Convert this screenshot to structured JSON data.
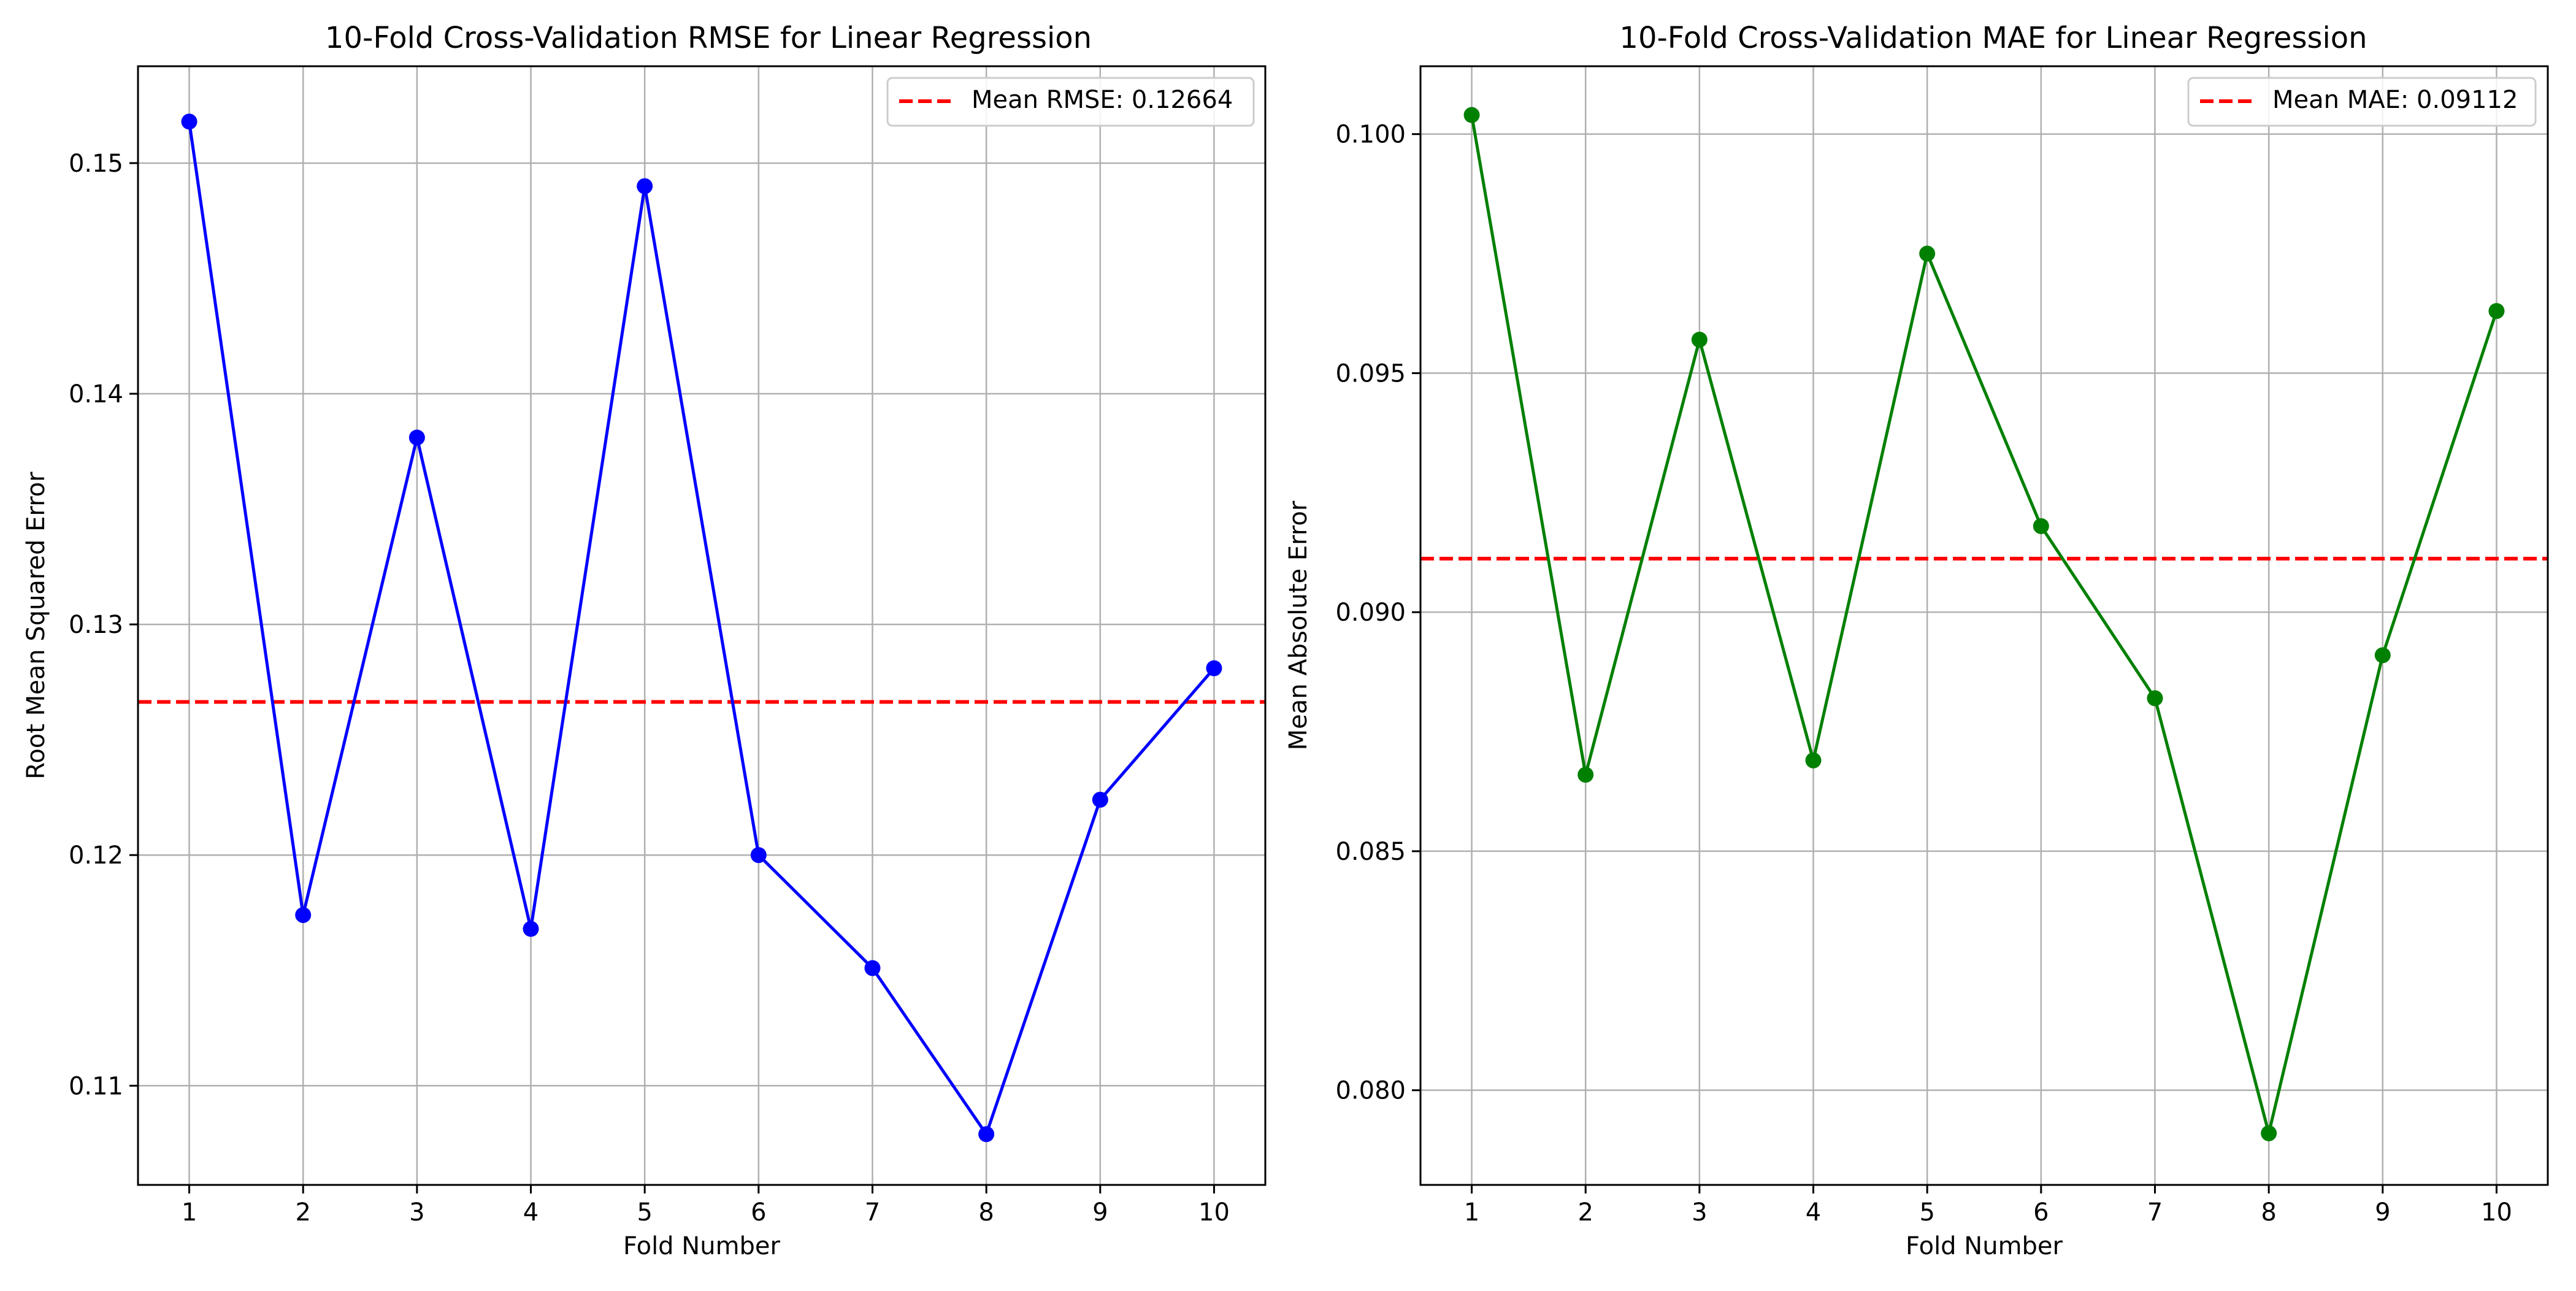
{
  "chart_data": [
    {
      "type": "line",
      "title": "10-Fold Cross-Validation RMSE for Linear Regression",
      "xlabel": "Fold Number",
      "ylabel": "Root Mean Squared Error",
      "x": [
        1,
        2,
        3,
        4,
        5,
        6,
        7,
        8,
        9,
        10
      ],
      "xlim": [
        0.55,
        10.45
      ],
      "ylim": [
        0.1057,
        0.1542
      ],
      "xticks": [
        "1",
        "2",
        "3",
        "4",
        "5",
        "6",
        "7",
        "8",
        "9",
        "10"
      ],
      "yticks": [
        "0.11",
        "0.12",
        "0.13",
        "0.14",
        "0.15"
      ],
      "ytick_values": [
        0.11,
        0.12,
        0.13,
        0.14,
        0.15
      ],
      "grid": true,
      "legend_position": "upper right",
      "series": [
        {
          "name": "",
          "values": [
            0.1518,
            0.1174,
            0.1381,
            0.1168,
            0.149,
            0.12,
            0.1151,
            0.1079,
            0.1224,
            0.1281
          ],
          "color": "#0000ff",
          "marker": "circle"
        }
      ],
      "mean_line": {
        "value": 0.12664,
        "label": "Mean RMSE: 0.12664",
        "color": "#ff0000",
        "style": "dashed"
      }
    },
    {
      "type": "line",
      "title": "10-Fold Cross-Validation MAE for Linear Regression",
      "xlabel": "Fold Number",
      "ylabel": "Mean Absolute Error",
      "x": [
        1,
        2,
        3,
        4,
        5,
        6,
        7,
        8,
        9,
        10
      ],
      "xlim": [
        0.55,
        10.45
      ],
      "ylim": [
        0.07802,
        0.10142
      ],
      "xticks": [
        "1",
        "2",
        "3",
        "4",
        "5",
        "6",
        "7",
        "8",
        "9",
        "10"
      ],
      "yticks": [
        "0.080",
        "0.085",
        "0.090",
        "0.095",
        "0.100"
      ],
      "ytick_values": [
        0.08,
        0.085,
        0.09,
        0.095,
        0.1
      ],
      "grid": true,
      "legend_position": "upper right",
      "series": [
        {
          "name": "",
          "values": [
            0.1004,
            0.0866,
            0.0957,
            0.0869,
            0.0975,
            0.0918,
            0.0882,
            0.0791,
            0.0891,
            0.0963
          ],
          "color": "#008000",
          "marker": "circle"
        }
      ],
      "mean_line": {
        "value": 0.09112,
        "label": "Mean MAE: 0.09112",
        "color": "#ff0000",
        "style": "dashed"
      }
    }
  ]
}
